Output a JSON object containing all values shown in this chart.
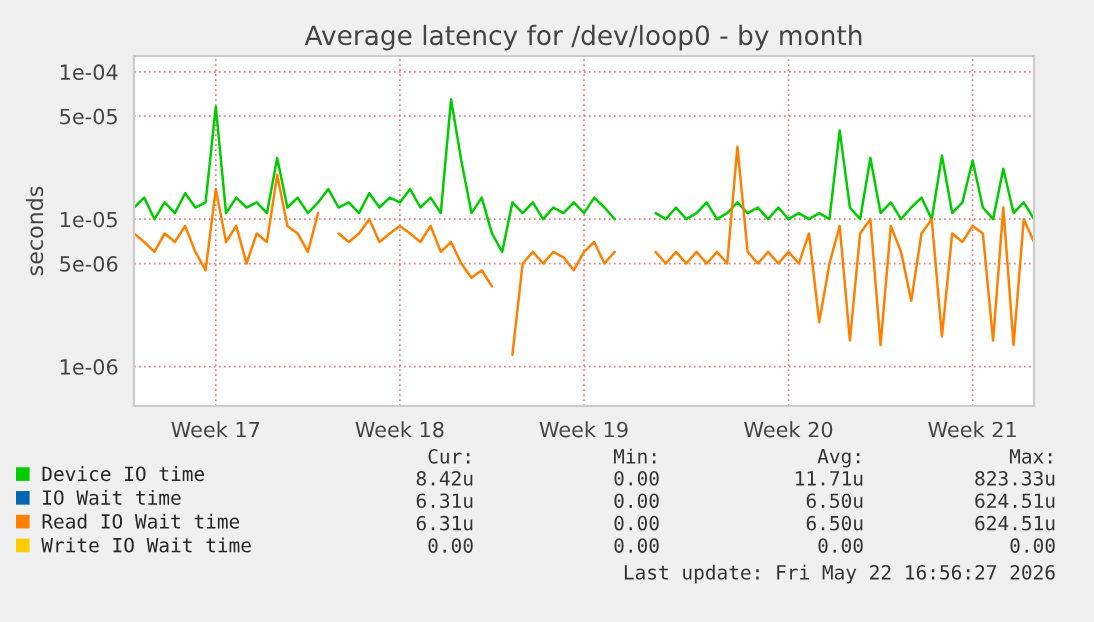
{
  "chart_data": {
    "type": "line",
    "title": "Average latency for /dev/loop0 - by month",
    "ylabel": "seconds",
    "categories": [
      null,
      null,
      null,
      null,
      null,
      null,
      null,
      null,
      "Week 17",
      null,
      null,
      null,
      null,
      null,
      null,
      null,
      null,
      null,
      null,
      null,
      null,
      null,
      null,
      null,
      null,
      null,
      "Week 18",
      null,
      null,
      null,
      null,
      null,
      null,
      null,
      null,
      null,
      null,
      null,
      null,
      null,
      null,
      null,
      null,
      null,
      "Week 19",
      null,
      null,
      null,
      null,
      null,
      null,
      null,
      null,
      null,
      null,
      null,
      null,
      null,
      null,
      null,
      null,
      null,
      null,
      null,
      "Week 20",
      null,
      null,
      null,
      null,
      null,
      null,
      null,
      null,
      null,
      null,
      null,
      null,
      null,
      null,
      null,
      null,
      null,
      "Week 21",
      null,
      null,
      null,
      null,
      null,
      null
    ],
    "series": [
      {
        "name": "Device IO time",
        "color": "#00cc00",
        "values": [
          1.2e-05,
          1.4e-05,
          1e-05,
          1.3e-05,
          1.1e-05,
          1.5e-05,
          1.2e-05,
          1.3e-05,
          5.8e-05,
          1.1e-05,
          1.4e-05,
          1.2e-05,
          1.3e-05,
          1.1e-05,
          2.6e-05,
          1.2e-05,
          1.4e-05,
          1.1e-05,
          1.3e-05,
          1.6e-05,
          1.2e-05,
          1.3e-05,
          1.1e-05,
          1.5e-05,
          1.2e-05,
          1.4e-05,
          1.3e-05,
          1.6e-05,
          1.2e-05,
          1.4e-05,
          1.1e-05,
          6.5e-05,
          2.5e-05,
          1.1e-05,
          1.4e-05,
          8e-06,
          6e-06,
          1.3e-05,
          1.1e-05,
          1.3e-05,
          1e-05,
          1.2e-05,
          1.1e-05,
          1.3e-05,
          1.1e-05,
          1.4e-05,
          1.2e-05,
          1e-05,
          null,
          null,
          null,
          1.1e-05,
          1e-05,
          1.2e-05,
          1e-05,
          1.1e-05,
          1.3e-05,
          1e-05,
          1.1e-05,
          1.3e-05,
          1.1e-05,
          1.2e-05,
          1e-05,
          1.2e-05,
          1e-05,
          1.1e-05,
          1e-05,
          1.1e-05,
          1e-05,
          4e-05,
          1.2e-05,
          1e-05,
          2.6e-05,
          1.1e-05,
          1.3e-05,
          1e-05,
          1.2e-05,
          1.4e-05,
          1e-05,
          2.7e-05,
          1.1e-05,
          1.3e-05,
          2.5e-05,
          1.2e-05,
          1e-05,
          2.2e-05,
          1.1e-05,
          1.3e-05,
          1e-05
        ]
      },
      {
        "name": "IO Wait time",
        "color": "#0066b3",
        "values": [
          null,
          null,
          null,
          null,
          null,
          null,
          null,
          null,
          null,
          null,
          null,
          null,
          null,
          null,
          null,
          null,
          null,
          null,
          null,
          null,
          null,
          null,
          null,
          null,
          null,
          null,
          null,
          null,
          null,
          null,
          null,
          null,
          null,
          null,
          null,
          null,
          null,
          null,
          null,
          null,
          null,
          null,
          null,
          null,
          null,
          null,
          null,
          null,
          null,
          null,
          null,
          null,
          null,
          null,
          null,
          null,
          null,
          null,
          null,
          null,
          null,
          null,
          null,
          null,
          null,
          null,
          null,
          null,
          null,
          null,
          null,
          null,
          null,
          null,
          null,
          null,
          null,
          null,
          null,
          null,
          null,
          null,
          null,
          null,
          null,
          null,
          null,
          null,
          null
        ]
      },
      {
        "name": "Read IO Wait time",
        "color": "#ff8000",
        "values": [
          8e-06,
          7e-06,
          6e-06,
          8e-06,
          7e-06,
          9e-06,
          6e-06,
          4.5e-06,
          1.6e-05,
          7e-06,
          9e-06,
          5e-06,
          8e-06,
          7e-06,
          2e-05,
          9e-06,
          8e-06,
          6e-06,
          1.1e-05,
          null,
          8e-06,
          7e-06,
          8e-06,
          1e-05,
          7e-06,
          8e-06,
          9e-06,
          8e-06,
          7e-06,
          9e-06,
          6e-06,
          7e-06,
          5e-06,
          4e-06,
          4.5e-06,
          3.5e-06,
          null,
          1.2e-06,
          5e-06,
          6e-06,
          5e-06,
          6e-06,
          5.5e-06,
          4.5e-06,
          6e-06,
          7e-06,
          5e-06,
          6e-06,
          null,
          null,
          null,
          6e-06,
          5e-06,
          6e-06,
          5e-06,
          6e-06,
          5e-06,
          6e-06,
          5e-06,
          3.1e-05,
          6e-06,
          5e-06,
          6e-06,
          5e-06,
          6e-06,
          5e-06,
          8e-06,
          2e-06,
          5e-06,
          9e-06,
          1.5e-06,
          8e-06,
          1e-05,
          1.4e-06,
          9e-06,
          6e-06,
          2.8e-06,
          8e-06,
          1e-05,
          1.6e-06,
          8e-06,
          7e-06,
          9e-06,
          8e-06,
          1.5e-06,
          1.2e-05,
          1.4e-06,
          1e-05,
          7e-06
        ]
      },
      {
        "name": "Write IO Wait time",
        "color": "#ffcc00",
        "values": [
          null,
          null,
          null,
          null,
          null,
          null,
          null,
          null,
          null,
          null,
          null,
          null,
          null,
          null,
          null,
          null,
          null,
          null,
          null,
          null,
          null,
          null,
          null,
          null,
          null,
          null,
          null,
          null,
          null,
          null,
          null,
          null,
          null,
          null,
          null,
          null,
          null,
          null,
          null,
          null,
          null,
          null,
          null,
          null,
          null,
          null,
          null,
          null,
          null,
          null,
          null,
          null,
          null,
          null,
          null,
          null,
          null,
          null,
          null,
          null,
          null,
          null,
          null,
          null,
          null,
          null,
          null,
          null,
          null,
          null,
          null,
          null,
          null,
          null,
          null,
          null,
          null,
          null,
          null,
          null,
          null,
          null,
          null,
          null,
          null,
          null,
          null,
          null,
          null
        ]
      }
    ],
    "log": true,
    "ylim": [
      5.4e-07,
      0.000128
    ],
    "yticks": [
      {
        "value": 1e-06,
        "label": "1e-06"
      },
      {
        "value": 5e-06,
        "label": "5e-06"
      },
      {
        "value": 1e-05,
        "label": "1e-05"
      },
      {
        "value": 5e-05,
        "label": "5e-05"
      },
      {
        "value": 0.0001,
        "label": "1e-04"
      }
    ],
    "grid": true,
    "legend": "bottom",
    "annotations": [
      "Cur:",
      "Min:",
      "Avg:",
      "Max:",
      "8.42u",
      "0.00",
      "11.71u",
      "823.33u",
      "6.31u",
      "0.00",
      "6.50u",
      "624.51u",
      "6.31u",
      "0.00",
      "6.50u",
      "624.51u",
      "0.00",
      "0.00",
      "0.00",
      "0.00",
      "Last update: Fri May 22 16:56:27 2026"
    ]
  }
}
